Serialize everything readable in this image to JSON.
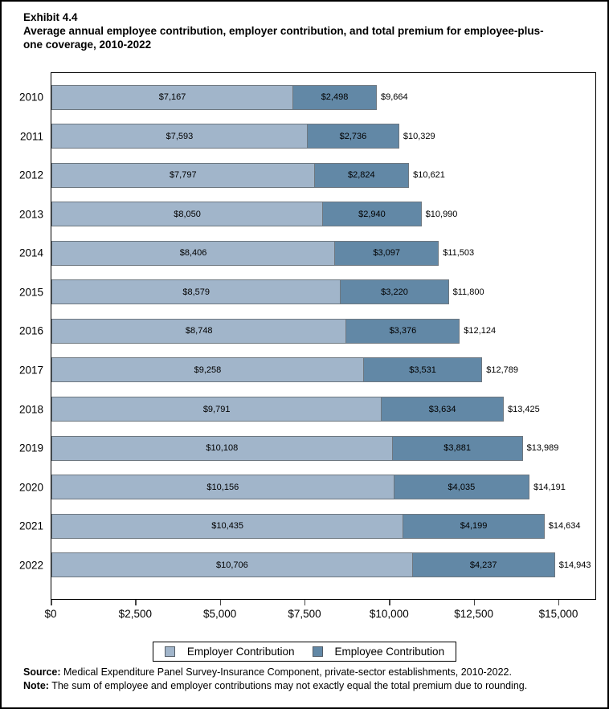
{
  "header": {
    "exhibit": "Exhibit 4.4",
    "title": "Average annual employee contribution, employer contribution, and total premium for employee-plus-one coverage, 2010-2022"
  },
  "chart_data": {
    "type": "bar",
    "orientation": "horizontal",
    "stacked": true,
    "title": "Average annual employee contribution, employer contribution, and total premium for employee-plus-one coverage, 2010-2022",
    "categories": [
      "2010",
      "2011",
      "2012",
      "2013",
      "2014",
      "2015",
      "2016",
      "2017",
      "2018",
      "2019",
      "2020",
      "2021",
      "2022"
    ],
    "series": [
      {
        "name": "Employer Contribution",
        "color": "#a1b5ca",
        "values": [
          7167,
          7593,
          7797,
          8050,
          8406,
          8579,
          8748,
          9258,
          9791,
          10108,
          10156,
          10435,
          10706
        ],
        "labels": [
          "$7,167",
          "$7,593",
          "$7,797",
          "$8,050",
          "$8,406",
          "$8,579",
          "$8,748",
          "$9,258",
          "$9,791",
          "$10,108",
          "$10,156",
          "$10,435",
          "$10,706"
        ]
      },
      {
        "name": "Employee Contribution",
        "color": "#6288a6",
        "values": [
          2498,
          2736,
          2824,
          2940,
          3097,
          3220,
          3376,
          3531,
          3634,
          3881,
          4035,
          4199,
          4237
        ],
        "labels": [
          "$2,498",
          "$2,736",
          "$2,824",
          "$2,940",
          "$3,097",
          "$3,220",
          "$3,376",
          "$3,531",
          "$3,634",
          "$3,881",
          "$4,035",
          "$4,199",
          "$4,237"
        ]
      }
    ],
    "totals": [
      9664,
      10329,
      10621,
      10990,
      11503,
      11800,
      12124,
      12789,
      13425,
      13989,
      14191,
      14634,
      14943
    ],
    "total_labels": [
      "$9,664",
      "$10,329",
      "$10,621",
      "$10,990",
      "$11,503",
      "$11,800",
      "$12,124",
      "$12,789",
      "$13,425",
      "$13,989",
      "$14,191",
      "$14,634",
      "$14,943"
    ],
    "x_ticks": [
      {
        "value": 0,
        "label": "$0"
      },
      {
        "value": 2500,
        "label": "$2,500"
      },
      {
        "value": 5000,
        "label": "$5,000"
      },
      {
        "value": 7500,
        "label": "$7,500"
      },
      {
        "value": 10000,
        "label": "$10,000"
      },
      {
        "value": 12500,
        "label": "$12,500"
      },
      {
        "value": 15000,
        "label": "$15,000"
      }
    ],
    "xlim": [
      0,
      15000
    ],
    "grid": false,
    "legend_position": "bottom"
  },
  "legend": {
    "items": [
      {
        "label": "Employer Contribution",
        "color": "#a1b5ca"
      },
      {
        "label": "Employee Contribution",
        "color": "#6288a6"
      }
    ]
  },
  "footer": {
    "source_label": "Source:",
    "source_text": " Medical Expenditure Panel Survey-Insurance Component, private-sector establishments, 2010-2022.",
    "note_label": "Note:",
    "note_text": " The sum of employee and employer contributions may not exactly equal the total premium due to rounding."
  }
}
